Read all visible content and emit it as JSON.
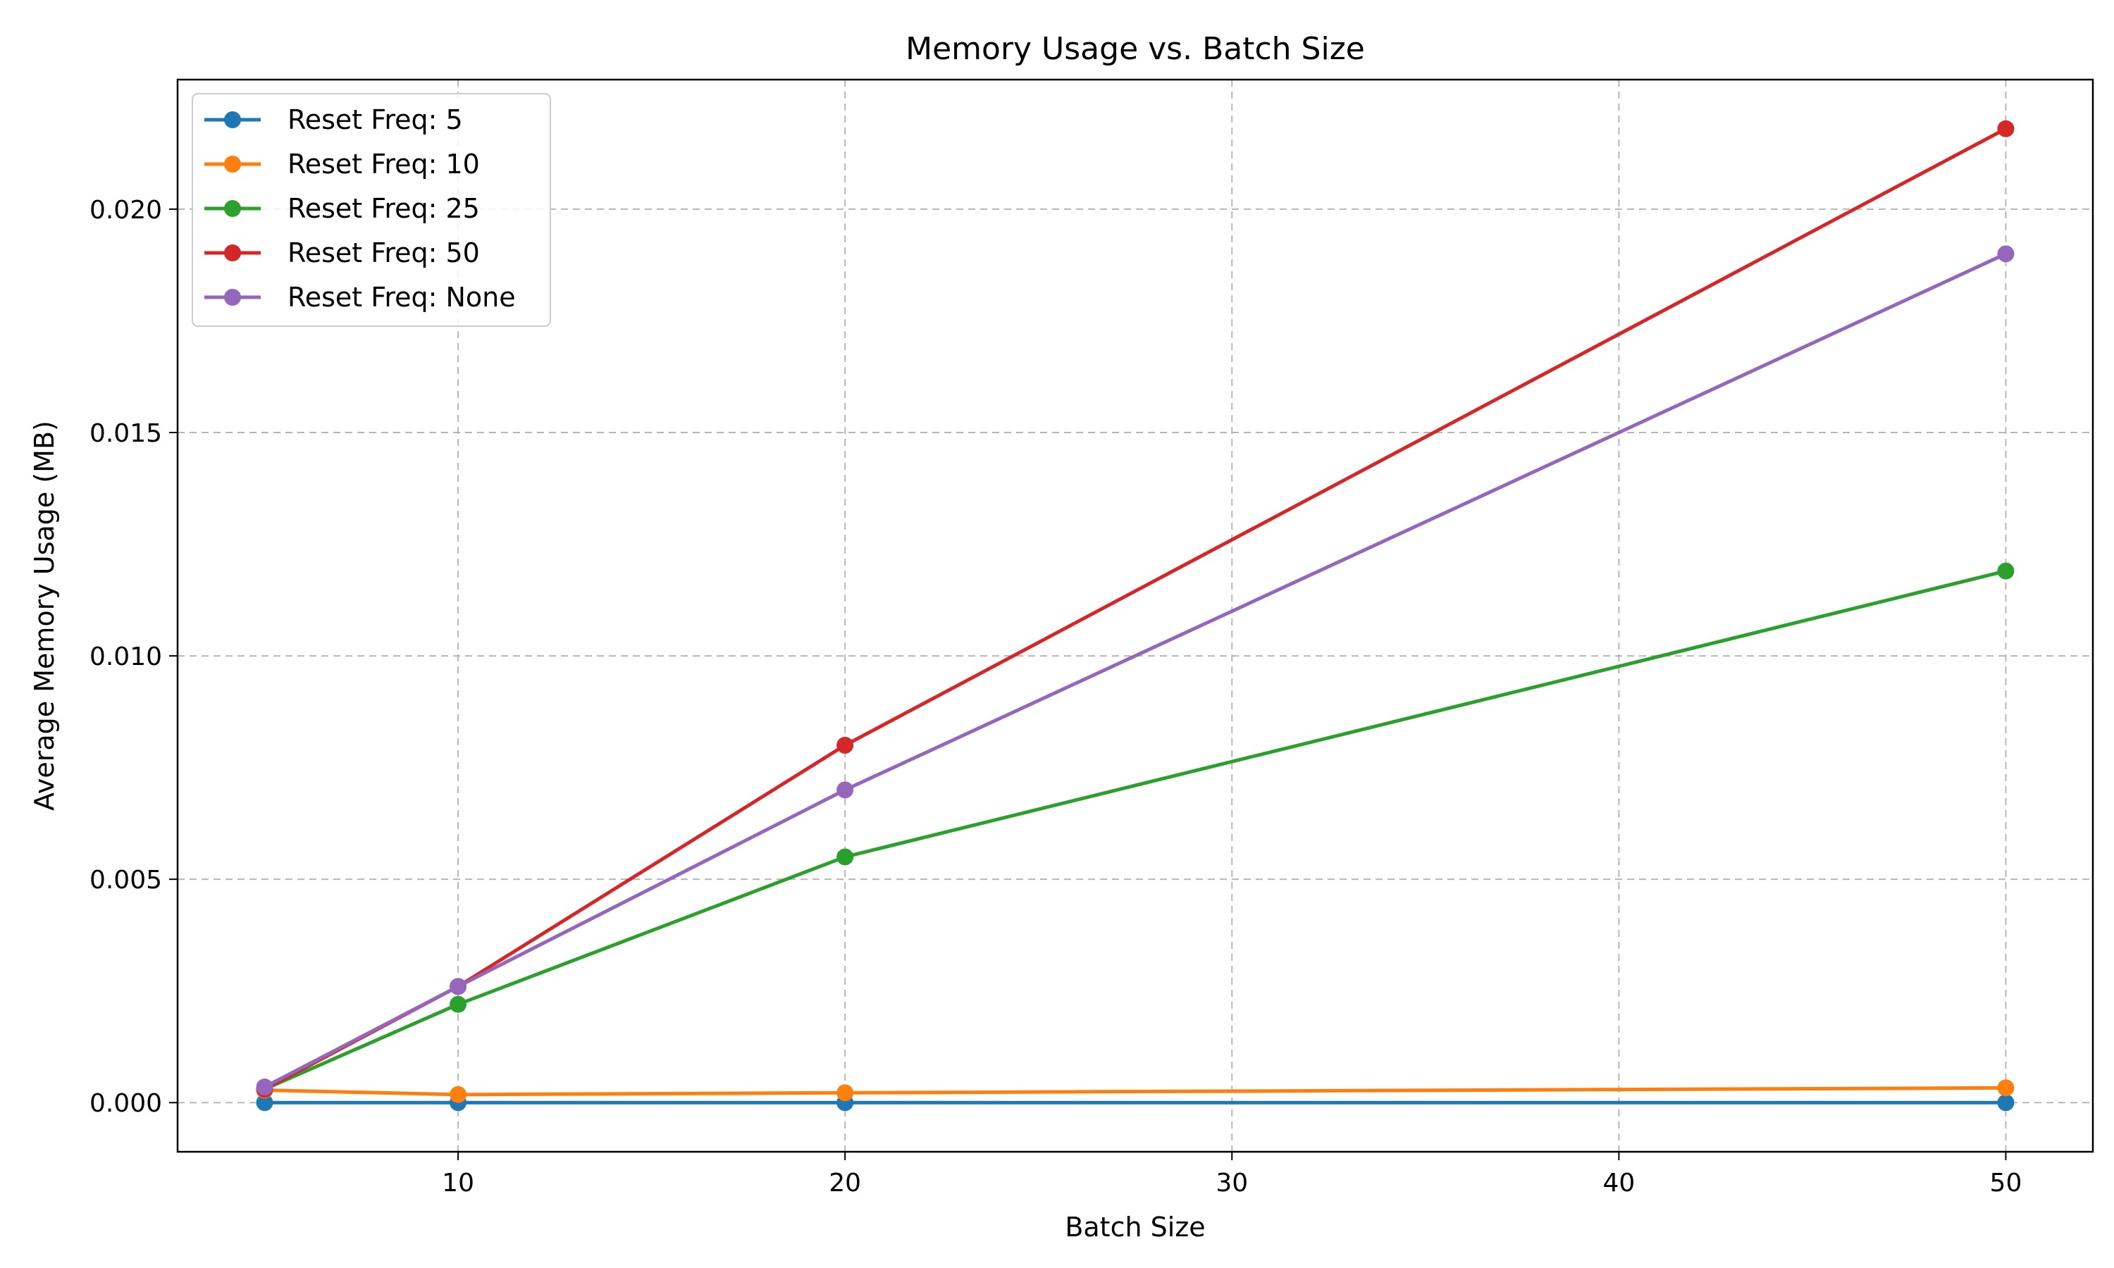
{
  "chart_data": {
    "type": "line",
    "title": "Memory Usage vs. Batch Size",
    "xlabel": "Batch Size",
    "ylabel": "Average Memory Usage (MB)",
    "x": [
      5,
      10,
      20,
      50
    ],
    "xlim": [
      2.75,
      52.25
    ],
    "ylim": [
      -0.0011,
      0.0229
    ],
    "xticks": [
      10,
      20,
      30,
      40,
      50
    ],
    "xtick_labels": [
      "10",
      "20",
      "30",
      "40",
      "50"
    ],
    "yticks": [
      0.0,
      0.005,
      0.01,
      0.015,
      0.02
    ],
    "ytick_labels": [
      "0.000",
      "0.005",
      "0.010",
      "0.015",
      "0.020"
    ],
    "grid": true,
    "legend_position": "top-left",
    "series": [
      {
        "name": "Reset Freq: 5",
        "color": "#1f77b4",
        "values": [
          0.0,
          0.0,
          0.0,
          0.0
        ]
      },
      {
        "name": "Reset Freq: 10",
        "color": "#ff7f0e",
        "values": [
          0.00028,
          0.00018,
          0.00022,
          0.00033
        ]
      },
      {
        "name": "Reset Freq: 25",
        "color": "#2ca02c",
        "values": [
          0.0003,
          0.0022,
          0.0055,
          0.0119
        ]
      },
      {
        "name": "Reset Freq: 50",
        "color": "#d62728",
        "values": [
          0.0003,
          0.0026,
          0.008,
          0.0218
        ]
      },
      {
        "name": "Reset Freq: None",
        "color": "#9467bd",
        "values": [
          0.00035,
          0.0026,
          0.007,
          0.019
        ]
      }
    ]
  }
}
